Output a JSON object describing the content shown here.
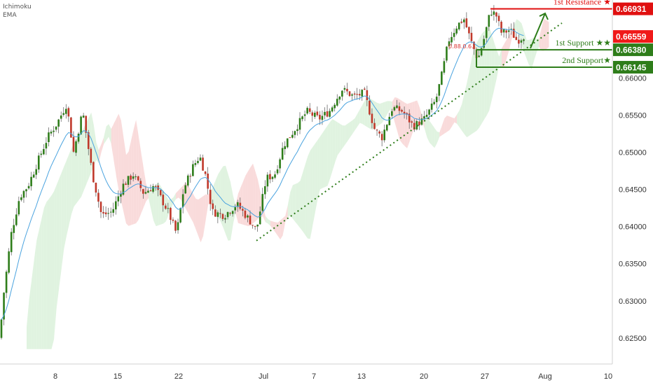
{
  "indicators": {
    "line1": "Ichimoku",
    "line2": "EMA"
  },
  "chart_data": {
    "type": "candlestick",
    "ylim": [
      0.6215,
      0.6705
    ],
    "y_ticks": [
      "0.62500",
      "0.63000",
      "0.63500",
      "0.64000",
      "0.64500",
      "0.65000",
      "0.65500",
      "0.66000"
    ],
    "x_ticks": [
      "8",
      "15",
      "22",
      "Jul",
      "7",
      "13",
      "20",
      "27",
      "Aug",
      "10"
    ],
    "level_label_text": "0.88.0.6...",
    "levels": [
      {
        "name": "1st Resistance ★",
        "price_label": "0.66931",
        "value": 0.66931,
        "color": "#e01010"
      },
      {
        "name": "1st Support ★★",
        "price_label": "0.66380",
        "value": 0.6638,
        "color": "#2e7d1a"
      },
      {
        "name": "2nd Support★",
        "price_label": "0.66145",
        "value": 0.66145,
        "color": "#2e7d1a"
      }
    ],
    "current_price": {
      "label": "0.66559",
      "value": 0.66559,
      "color": "#f01919"
    },
    "trendline": {
      "start": 0.6381,
      "end": 0.6674
    },
    "projected_target": 0.6687
  },
  "colors": {
    "bull": "#2e7d1a",
    "bear": "#c0392b",
    "ema": "#4aa3df",
    "cloud_bull": "#d6efd6",
    "cloud_bear": "#f7cfcf",
    "axis_bg": "#ffffff"
  }
}
